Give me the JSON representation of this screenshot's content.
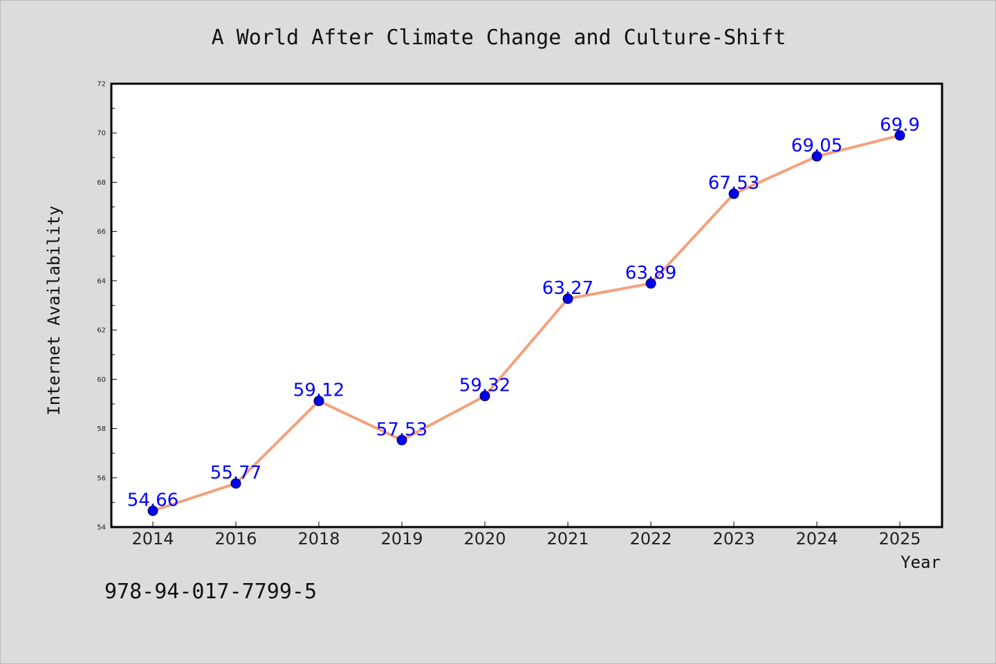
{
  "footer": {
    "isbn": "978-94-017-7799-5"
  },
  "chart_data": {
    "type": "line",
    "title": "A World After Climate Change and Culture-Shift",
    "xlabel": "Year",
    "ylabel": "Internet Availability",
    "categories": [
      "2014",
      "2016",
      "2018",
      "2019",
      "2020",
      "2021",
      "2022",
      "2023",
      "2024",
      "2025"
    ],
    "series": [
      {
        "values": [
          54.66,
          55.77,
          59.12,
          57.53,
          59.32,
          63.27,
          63.89,
          67.53,
          69.05,
          69.9
        ],
        "labels": [
          "54.66",
          "55.77",
          "59.12",
          "57.53",
          "59.32",
          "63.27",
          "63.89",
          "67.53",
          "69.05",
          "69.9"
        ],
        "line_color": "#f4a07c",
        "marker_color": "#0000ee"
      }
    ],
    "ylim": [
      54,
      72
    ],
    "yticks": [
      54,
      56,
      58,
      60,
      62,
      64,
      66,
      68,
      70,
      72
    ],
    "grid": false,
    "legend": "none"
  }
}
